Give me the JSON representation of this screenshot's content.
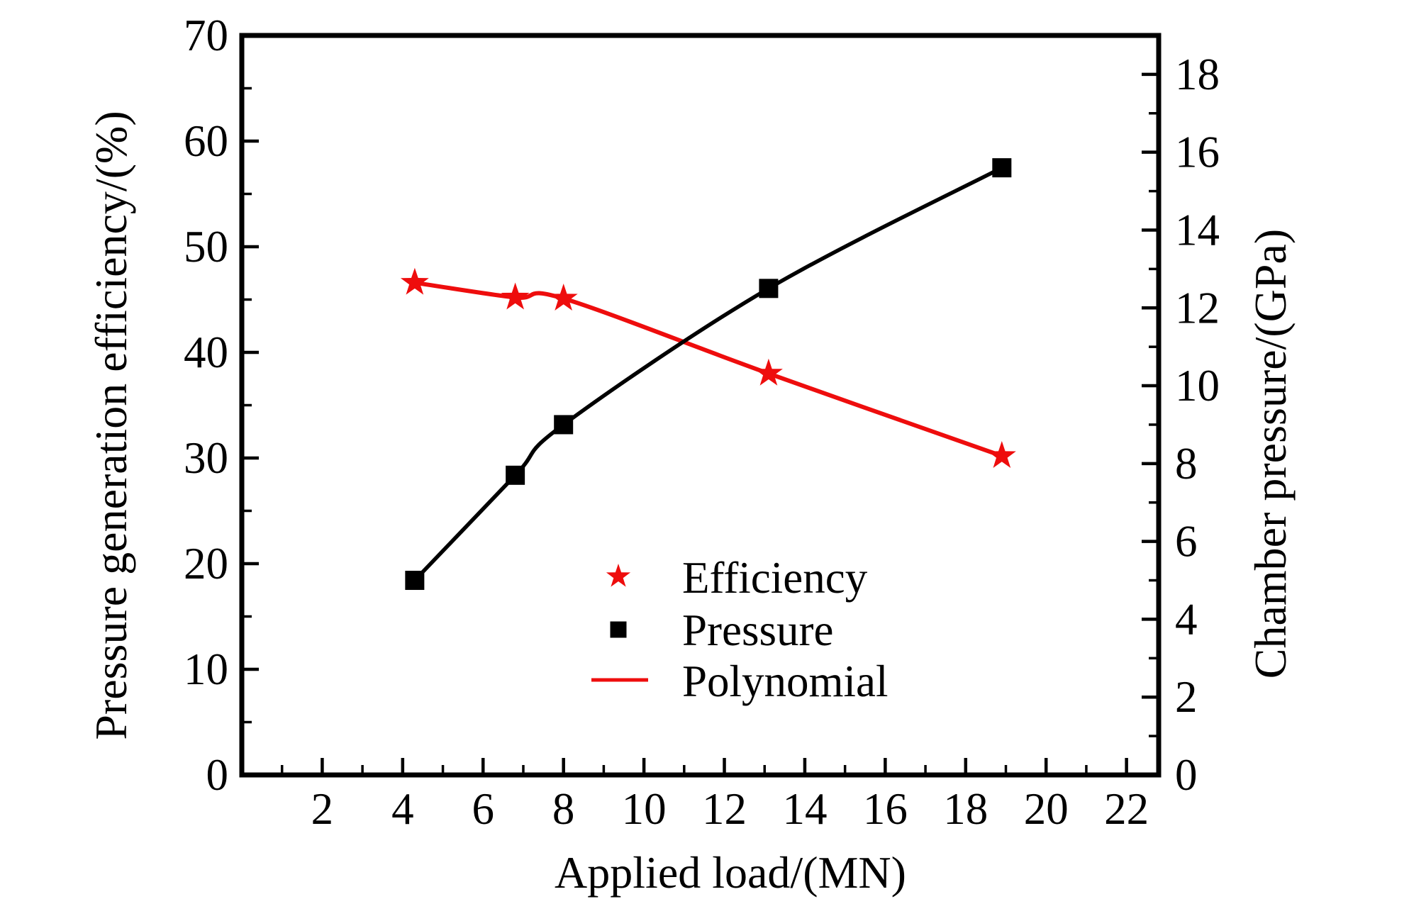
{
  "figure": {
    "background": "#ffffff",
    "accent_red": "#ee0d0d",
    "black": "#000000"
  },
  "chart_data": {
    "type": "line",
    "title": "",
    "x_axis": {
      "label": "Applied load/(MN)",
      "range": [
        0,
        22.8
      ],
      "major_ticks": [
        2,
        4,
        6,
        8,
        10,
        12,
        14,
        16,
        18,
        20,
        22
      ],
      "minor_ticks": [
        1,
        3,
        5,
        7,
        9,
        11,
        13,
        15,
        17,
        19,
        21
      ]
    },
    "y_left": {
      "label": "Pressure generation efficiency/(%)",
      "range": [
        0,
        70
      ],
      "major_ticks": [
        0,
        10,
        20,
        30,
        40,
        50,
        60,
        70
      ],
      "minor_ticks": [
        5,
        15,
        25,
        35,
        45,
        55,
        65
      ]
    },
    "y_right": {
      "label": "Chamber pressure/(GPa)",
      "range": [
        0,
        19
      ],
      "major_ticks": [
        0,
        2,
        4,
        6,
        8,
        10,
        12,
        14,
        16,
        18
      ],
      "minor_ticks": [
        1,
        3,
        5,
        7,
        9,
        11,
        13,
        15,
        17
      ]
    },
    "series": [
      {
        "name": "Efficiency",
        "axis": "left",
        "marker": "star",
        "color": "#ee0d0d",
        "line": true,
        "x": [
          4.3,
          6.8,
          8.0,
          13.1,
          18.9
        ],
        "values": [
          46.6,
          45.2,
          45.1,
          38.0,
          30.2
        ]
      },
      {
        "name": "Pressure",
        "axis": "right",
        "marker": "square",
        "color": "#000000",
        "line": true,
        "x": [
          4.3,
          6.8,
          8.0,
          13.1,
          18.9
        ],
        "values": [
          5.0,
          7.7,
          9.0,
          12.5,
          15.6
        ]
      }
    ],
    "legend": {
      "position": "inside-center-bottom",
      "entries": [
        {
          "label": "Efficiency",
          "marker": "star",
          "color": "#ee0d0d"
        },
        {
          "label": "Pressure",
          "marker": "square",
          "color": "#000000"
        },
        {
          "label": "Polynomial",
          "marker": "line",
          "color": "#ee0d0d"
        }
      ]
    }
  }
}
